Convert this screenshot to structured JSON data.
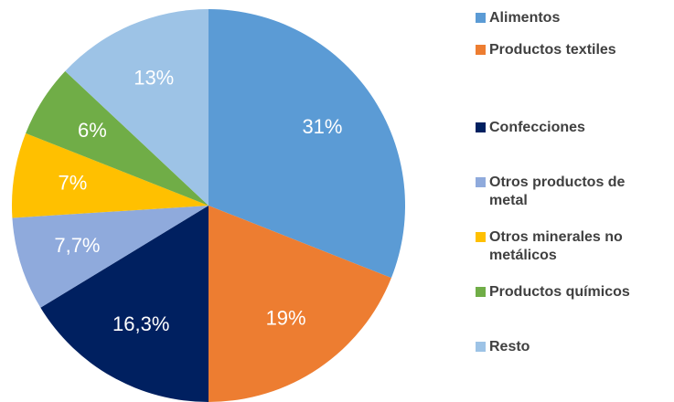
{
  "chart_data": {
    "type": "pie",
    "categories": [
      "Alimentos",
      "Productos textiles",
      "Confecciones",
      "Otros productos de metal",
      "Otros minerales no metálicos",
      "Productos químicos",
      "Resto"
    ],
    "values": [
      31,
      19,
      16.3,
      7.7,
      7,
      6,
      13
    ],
    "value_labels": [
      "31%",
      "19%",
      "16,3%",
      "7,7%",
      "7%",
      "6%",
      "13%"
    ],
    "colors": [
      "#5b9bd5",
      "#ed7d31",
      "#002060",
      "#8faadc",
      "#ffc000",
      "#70ad47",
      "#9dc3e6"
    ],
    "legend": "right"
  }
}
